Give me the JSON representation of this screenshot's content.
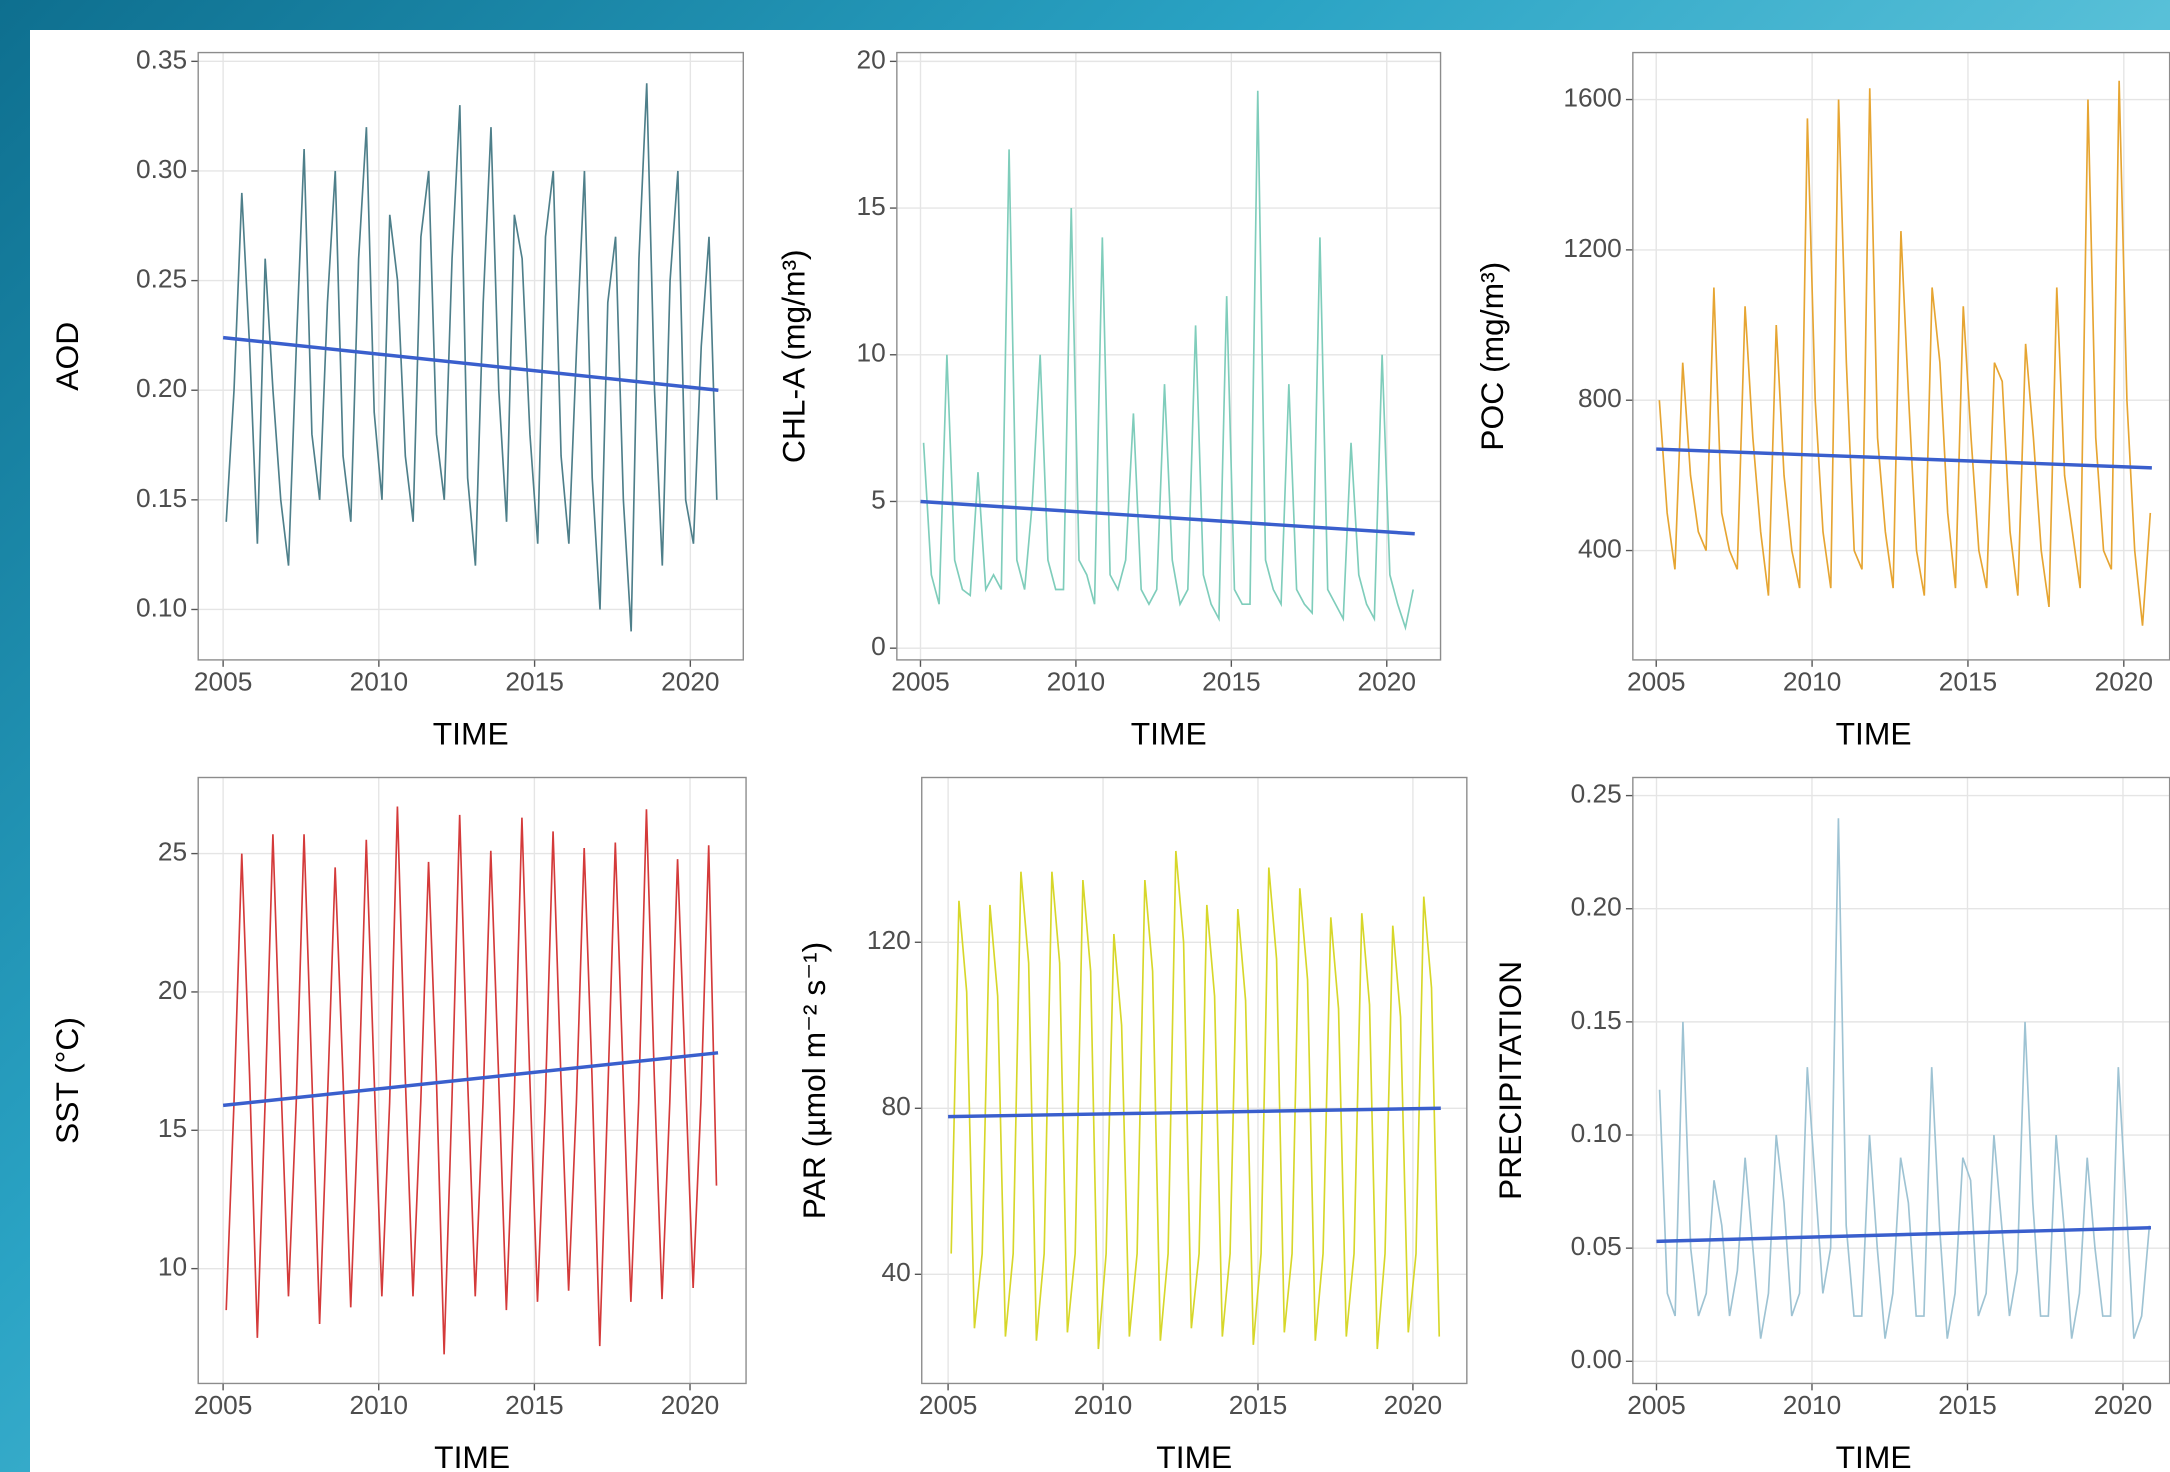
{
  "chart_data": [
    {
      "type": "line",
      "y_label": "AOD",
      "x_label": "TIME",
      "x": [
        2005.1,
        2005.35,
        2005.6,
        2005.85,
        2006.1,
        2006.35,
        2006.6,
        2006.85,
        2007.1,
        2007.35,
        2007.6,
        2007.85,
        2008.1,
        2008.35,
        2008.6,
        2008.85,
        2009.1,
        2009.35,
        2009.6,
        2009.85,
        2010.1,
        2010.35,
        2010.6,
        2010.85,
        2011.1,
        2011.35,
        2011.6,
        2011.85,
        2012.1,
        2012.35,
        2012.6,
        2012.85,
        2013.1,
        2013.35,
        2013.6,
        2013.85,
        2014.1,
        2014.35,
        2014.6,
        2014.85,
        2015.1,
        2015.35,
        2015.6,
        2015.85,
        2016.1,
        2016.35,
        2016.6,
        2016.85,
        2017.1,
        2017.35,
        2017.6,
        2017.85,
        2018.1,
        2018.35,
        2018.6,
        2018.85,
        2019.1,
        2019.35,
        2019.6,
        2019.85,
        2020.1,
        2020.35,
        2020.6,
        2020.85
      ],
      "series": [
        {
          "color": "#4e7f8a",
          "values": [
            0.14,
            0.2,
            0.29,
            0.22,
            0.13,
            0.26,
            0.2,
            0.15,
            0.12,
            0.22,
            0.31,
            0.18,
            0.15,
            0.24,
            0.3,
            0.17,
            0.14,
            0.26,
            0.32,
            0.19,
            0.15,
            0.28,
            0.25,
            0.17,
            0.14,
            0.27,
            0.3,
            0.18,
            0.15,
            0.26,
            0.33,
            0.16,
            0.12,
            0.24,
            0.32,
            0.2,
            0.14,
            0.28,
            0.26,
            0.18,
            0.13,
            0.27,
            0.3,
            0.17,
            0.13,
            0.22,
            0.3,
            0.16,
            0.1,
            0.24,
            0.27,
            0.15,
            0.09,
            0.26,
            0.34,
            0.2,
            0.12,
            0.25,
            0.3,
            0.15,
            0.13,
            0.22,
            0.27,
            0.15
          ]
        }
      ],
      "trend": {
        "color": "#3a5fcd",
        "x": [
          2005,
          2020.9
        ],
        "values": [
          0.224,
          0.2
        ]
      },
      "xlim": [
        2004.2,
        2021.7
      ],
      "ylim": [
        0.077,
        0.354
      ],
      "xticks": [
        2005,
        2010,
        2015,
        2020
      ],
      "yticks": [
        {
          "value": 0.1,
          "label": "0.10"
        },
        0.15,
        {
          "value": 0.2,
          "label": "0.20"
        },
        0.25,
        {
          "value": 0.3,
          "label": "0.30"
        },
        0.35
      ],
      "grid": true
    },
    {
      "type": "line",
      "y_label": "CHL-A (mg/m³)",
      "x_label": "TIME",
      "x": [
        2005.1,
        2005.35,
        2005.6,
        2005.85,
        2006.1,
        2006.35,
        2006.6,
        2006.85,
        2007.1,
        2007.35,
        2007.6,
        2007.85,
        2008.1,
        2008.35,
        2008.6,
        2008.85,
        2009.1,
        2009.35,
        2009.6,
        2009.85,
        2010.1,
        2010.35,
        2010.6,
        2010.85,
        2011.1,
        2011.35,
        2011.6,
        2011.85,
        2012.1,
        2012.35,
        2012.6,
        2012.85,
        2013.1,
        2013.35,
        2013.6,
        2013.85,
        2014.1,
        2014.35,
        2014.6,
        2014.85,
        2015.1,
        2015.35,
        2015.6,
        2015.85,
        2016.1,
        2016.35,
        2016.6,
        2016.85,
        2017.1,
        2017.35,
        2017.6,
        2017.85,
        2018.1,
        2018.35,
        2018.6,
        2018.85,
        2019.1,
        2019.35,
        2019.6,
        2019.85,
        2020.1,
        2020.35,
        2020.6,
        2020.85
      ],
      "series": [
        {
          "color": "#7fcdbb",
          "values": [
            7,
            2.5,
            1.5,
            10,
            3,
            2,
            1.8,
            6,
            2,
            2.5,
            2,
            17,
            3,
            2,
            5,
            10,
            3,
            2,
            2,
            15,
            3,
            2.5,
            1.5,
            14,
            2.5,
            2,
            3,
            8,
            2,
            1.5,
            2,
            9,
            3,
            1.5,
            2,
            11,
            2.5,
            1.5,
            1,
            12,
            2,
            1.5,
            1.5,
            19,
            3,
            2,
            1.5,
            9,
            2,
            1.5,
            1.2,
            14,
            2,
            1.5,
            1,
            7,
            2.5,
            1.5,
            1,
            10,
            2.5,
            1.5,
            0.7,
            2
          ]
        }
      ],
      "trend": {
        "color": "#3a5fcd",
        "x": [
          2005,
          2020.9
        ],
        "values": [
          5.0,
          3.9
        ]
      },
      "xlim": [
        2004.24,
        2021.73
      ],
      "ylim": [
        -0.4,
        20.3
      ],
      "xticks": [
        2005,
        2010,
        2015,
        2020
      ],
      "yticks": [
        0,
        5,
        10,
        15,
        20
      ],
      "grid": true
    },
    {
      "type": "line",
      "y_label": "POC (mg/m³)",
      "x_label": "TIME",
      "x": [
        2005.1,
        2005.35,
        2005.6,
        2005.85,
        2006.1,
        2006.35,
        2006.6,
        2006.85,
        2007.1,
        2007.35,
        2007.6,
        2007.85,
        2008.1,
        2008.35,
        2008.6,
        2008.85,
        2009.1,
        2009.35,
        2009.6,
        2009.85,
        2010.1,
        2010.35,
        2010.6,
        2010.85,
        2011.1,
        2011.35,
        2011.6,
        2011.85,
        2012.1,
        2012.35,
        2012.6,
        2012.85,
        2013.1,
        2013.35,
        2013.6,
        2013.85,
        2014.1,
        2014.35,
        2014.6,
        2014.85,
        2015.1,
        2015.35,
        2015.6,
        2015.85,
        2016.1,
        2016.35,
        2016.6,
        2016.85,
        2017.1,
        2017.35,
        2017.6,
        2017.85,
        2018.1,
        2018.35,
        2018.6,
        2018.85,
        2019.1,
        2019.35,
        2019.6,
        2019.85,
        2020.1,
        2020.35,
        2020.6,
        2020.85
      ],
      "series": [
        {
          "color": "#e6a532",
          "values": [
            800,
            500,
            350,
            900,
            600,
            450,
            400,
            1100,
            500,
            400,
            350,
            1050,
            700,
            450,
            280,
            1000,
            600,
            400,
            300,
            1550,
            800,
            450,
            300,
            1600,
            900,
            400,
            350,
            1630,
            700,
            450,
            300,
            1250,
            800,
            400,
            280,
            1100,
            900,
            500,
            300,
            1050,
            700,
            400,
            300,
            900,
            850,
            450,
            280,
            950,
            700,
            400,
            250,
            1100,
            600,
            450,
            300,
            1600,
            700,
            400,
            350,
            1650,
            800,
            400,
            200,
            500
          ]
        }
      ],
      "trend": {
        "color": "#3a5fcd",
        "x": [
          2005,
          2020.9
        ],
        "values": [
          670,
          620
        ]
      },
      "xlim": [
        2004.25,
        2021.47
      ],
      "ylim": [
        109,
        1725
      ],
      "xticks": [
        2005,
        2010,
        2015,
        2020
      ],
      "yticks": [
        400,
        800,
        1200,
        1600
      ],
      "grid": true
    },
    {
      "type": "line",
      "y_label": "SST (°C)",
      "x_label": "TIME",
      "x": [
        2005.1,
        2005.35,
        2005.6,
        2005.85,
        2006.1,
        2006.35,
        2006.6,
        2006.85,
        2007.1,
        2007.35,
        2007.6,
        2007.85,
        2008.1,
        2008.35,
        2008.6,
        2008.85,
        2009.1,
        2009.35,
        2009.6,
        2009.85,
        2010.1,
        2010.35,
        2010.6,
        2010.85,
        2011.1,
        2011.35,
        2011.6,
        2011.85,
        2012.1,
        2012.35,
        2012.6,
        2012.85,
        2013.1,
        2013.35,
        2013.6,
        2013.85,
        2014.1,
        2014.35,
        2014.6,
        2014.85,
        2015.1,
        2015.35,
        2015.6,
        2015.85,
        2016.1,
        2016.35,
        2016.6,
        2016.85,
        2017.1,
        2017.35,
        2017.6,
        2017.85,
        2018.1,
        2018.35,
        2018.6,
        2018.85,
        2019.1,
        2019.35,
        2019.6,
        2019.85,
        2020.1,
        2020.35,
        2020.6,
        2020.85
      ],
      "series": [
        {
          "color": "#d43a3a",
          "values": [
            8.5,
            16,
            25,
            17,
            7.5,
            16,
            25.7,
            17,
            9,
            16,
            25.7,
            17,
            8,
            16,
            24.5,
            17,
            8.6,
            16,
            25.5,
            17,
            9,
            16,
            26.7,
            17,
            9,
            16,
            24.7,
            17,
            6.9,
            16,
            26.4,
            17,
            9,
            16,
            25.1,
            17,
            8.5,
            16,
            26.3,
            17,
            8.8,
            16,
            25.8,
            17,
            9.2,
            16,
            25.2,
            17,
            7.2,
            16,
            25.4,
            17,
            8.8,
            16,
            26.6,
            17,
            8.9,
            16,
            24.8,
            17,
            9.3,
            16,
            25.3,
            13
          ]
        }
      ],
      "trend": {
        "color": "#3a5fcd",
        "x": [
          2005,
          2020.9
        ],
        "values": [
          15.9,
          17.8
        ]
      },
      "xlim": [
        2004.2,
        2021.8
      ],
      "ylim": [
        5.85,
        27.75
      ],
      "xticks": [
        2005,
        2010,
        2015,
        2020
      ],
      "yticks": [
        10,
        15,
        20,
        25
      ],
      "grid": true
    },
    {
      "type": "line",
      "y_label": "PAR (µmol m⁻² s⁻¹)",
      "x_label": "TIME",
      "x": [
        2005.1,
        2005.35,
        2005.6,
        2005.85,
        2006.1,
        2006.35,
        2006.6,
        2006.85,
        2007.1,
        2007.35,
        2007.6,
        2007.85,
        2008.1,
        2008.35,
        2008.6,
        2008.85,
        2009.1,
        2009.35,
        2009.6,
        2009.85,
        2010.1,
        2010.35,
        2010.6,
        2010.85,
        2011.1,
        2011.35,
        2011.6,
        2011.85,
        2012.1,
        2012.35,
        2012.6,
        2012.85,
        2013.1,
        2013.35,
        2013.6,
        2013.85,
        2014.1,
        2014.35,
        2014.6,
        2014.85,
        2015.1,
        2015.35,
        2015.6,
        2015.85,
        2016.1,
        2016.35,
        2016.6,
        2016.85,
        2017.1,
        2017.35,
        2017.6,
        2017.85,
        2018.1,
        2018.35,
        2018.6,
        2018.85,
        2019.1,
        2019.35,
        2019.6,
        2019.85,
        2020.1,
        2020.35,
        2020.6,
        2020.85
      ],
      "series": [
        {
          "color": "#d7d72a",
          "values": [
            45,
            130,
            108,
            27,
            45,
            129,
            107,
            25,
            45,
            137,
            115,
            24,
            45,
            137,
            115,
            26,
            45,
            135,
            113,
            22,
            45,
            122,
            100,
            25,
            45,
            135,
            113,
            24,
            45,
            142,
            120,
            27,
            45,
            129,
            107,
            25,
            45,
            128,
            106,
            23,
            45,
            138,
            116,
            26,
            45,
            133,
            111,
            24,
            45,
            126,
            104,
            25,
            45,
            127,
            105,
            22,
            45,
            124,
            102,
            26,
            45,
            131,
            109,
            25
          ]
        }
      ],
      "trend": {
        "color": "#3a5fcd",
        "x": [
          2005,
          2020.9
        ],
        "values": [
          78,
          80
        ]
      },
      "xlim": [
        2004.15,
        2021.74
      ],
      "ylim": [
        13.7,
        159.7
      ],
      "xticks": [
        2005,
        2010,
        2015,
        2020
      ],
      "yticks": [
        40,
        80,
        120
      ],
      "grid": true
    },
    {
      "type": "line",
      "y_label": "PRECIPITATION",
      "x_label": "TIME",
      "x": [
        2005.1,
        2005.35,
        2005.6,
        2005.85,
        2006.1,
        2006.35,
        2006.6,
        2006.85,
        2007.1,
        2007.35,
        2007.6,
        2007.85,
        2008.1,
        2008.35,
        2008.6,
        2008.85,
        2009.1,
        2009.35,
        2009.6,
        2009.85,
        2010.1,
        2010.35,
        2010.6,
        2010.85,
        2011.1,
        2011.35,
        2011.6,
        2011.85,
        2012.1,
        2012.35,
        2012.6,
        2012.85,
        2013.1,
        2013.35,
        2013.6,
        2013.85,
        2014.1,
        2014.35,
        2014.6,
        2014.85,
        2015.1,
        2015.35,
        2015.6,
        2015.85,
        2016.1,
        2016.35,
        2016.6,
        2016.85,
        2017.1,
        2017.35,
        2017.6,
        2017.85,
        2018.1,
        2018.35,
        2018.6,
        2018.85,
        2019.1,
        2019.35,
        2019.6,
        2019.85,
        2020.1,
        2020.35,
        2020.6,
        2020.85
      ],
      "series": [
        {
          "color": "#9ec3d3",
          "values": [
            0.12,
            0.03,
            0.02,
            0.15,
            0.05,
            0.02,
            0.03,
            0.08,
            0.06,
            0.02,
            0.04,
            0.09,
            0.05,
            0.01,
            0.03,
            0.1,
            0.07,
            0.02,
            0.03,
            0.13,
            0.08,
            0.03,
            0.05,
            0.24,
            0.06,
            0.02,
            0.02,
            0.1,
            0.05,
            0.01,
            0.03,
            0.09,
            0.07,
            0.02,
            0.02,
            0.13,
            0.06,
            0.01,
            0.03,
            0.09,
            0.08,
            0.02,
            0.03,
            0.1,
            0.06,
            0.02,
            0.04,
            0.15,
            0.07,
            0.02,
            0.02,
            0.1,
            0.06,
            0.01,
            0.03,
            0.09,
            0.05,
            0.02,
            0.02,
            0.13,
            0.07,
            0.01,
            0.02,
            0.06
          ]
        }
      ],
      "trend": {
        "color": "#3a5fcd",
        "x": [
          2005,
          2020.9
        ],
        "values": [
          0.053,
          0.059
        ]
      },
      "xlim": [
        2004.24,
        2021.5
      ],
      "ylim": [
        -0.0098,
        0.258
      ],
      "xticks": [
        2005,
        2010,
        2015,
        2020
      ],
      "yticks": [
        {
          "value": 0,
          "label": "0.00"
        },
        0.05,
        {
          "value": 0.1,
          "label": "0.10"
        },
        0.15,
        {
          "value": 0.2,
          "label": "0.20"
        },
        0.25
      ],
      "grid": true
    }
  ]
}
